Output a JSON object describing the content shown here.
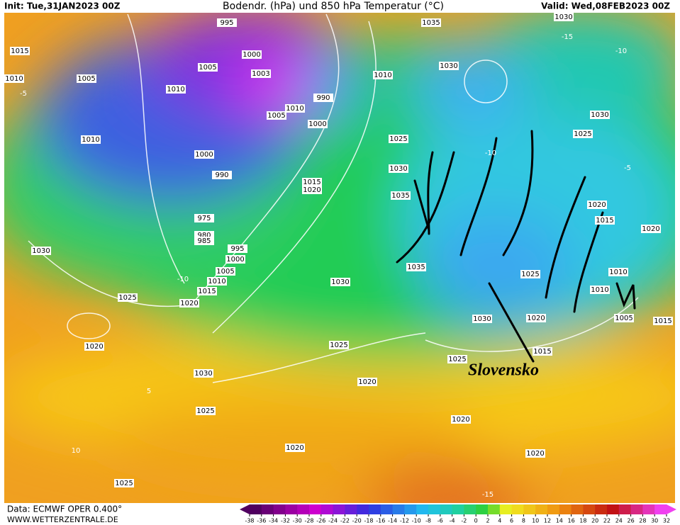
{
  "header": {
    "init": "Init: Tue,31JAN2023 00Z",
    "title": "Bodendr. (hPa) und 850 hPa Temperatur (°C)",
    "valid": "Valid: Wed,08FEB2023 00Z"
  },
  "map": {
    "annotation": "Slovensko",
    "isobars": [
      995,
      1000,
      1005,
      1003,
      1010,
      1005,
      1010,
      990,
      1000,
      1000,
      990,
      975,
      980,
      985,
      995,
      1000,
      1005,
      1010,
      1015,
      1020,
      1025,
      1030,
      1015,
      1010,
      1005,
      1010,
      1025,
      1030,
      1035,
      1035,
      1030,
      1015,
      1020,
      1010,
      1035,
      1030,
      1030,
      1030,
      1025,
      1020,
      1015,
      1020,
      1010,
      1010,
      1005,
      1015,
      1025,
      1020,
      1030,
      1015,
      1025,
      1025,
      1020,
      1020,
      1030,
      1025,
      1020,
      1020,
      1020,
      1025
    ],
    "isotherms": [
      -10,
      -5,
      5,
      10,
      -15,
      -10,
      -15,
      -10,
      -5
    ]
  },
  "legend": {
    "ticks": [
      -38,
      -36,
      -34,
      -32,
      -30,
      -28,
      -26,
      -24,
      -22,
      -20,
      -18,
      -16,
      -14,
      -12,
      -10,
      -8,
      -6,
      -4,
      -2,
      0,
      2,
      4,
      6,
      8,
      10,
      12,
      14,
      16,
      18,
      20,
      22,
      24,
      26,
      28,
      30,
      32
    ]
  },
  "footer": {
    "source": "Data: ECMWF OPER 0.400°",
    "url": "WWW.WETTERZENTRALE.DE"
  }
}
